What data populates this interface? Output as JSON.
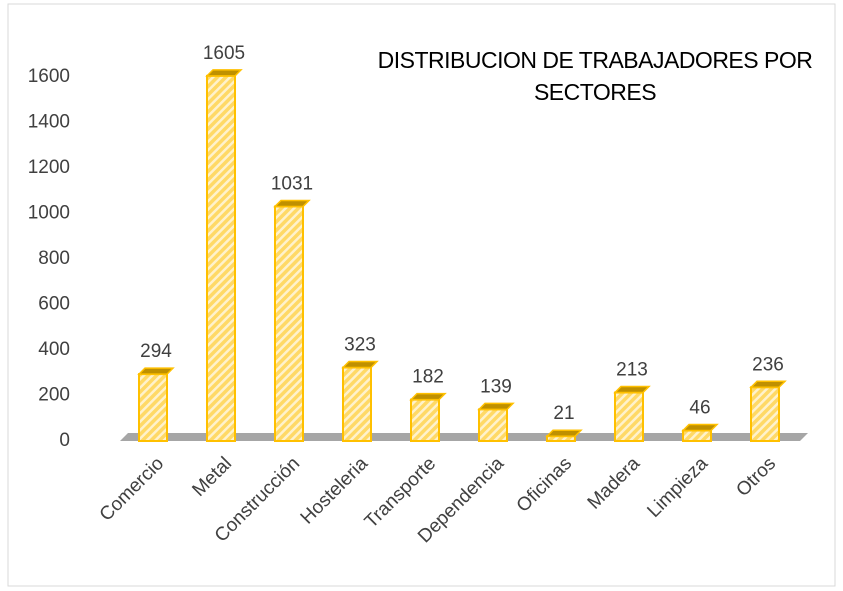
{
  "chart_data": {
    "type": "bar",
    "title": "DISTRIBUCION DE TRABAJADORES POR SECTORES",
    "categories": [
      "Comercio",
      "Metal",
      "Construcción",
      "Hosteleria",
      "Transporte",
      "Dependencia",
      "Oficinas",
      "Madera",
      "Limpieza",
      "Otros"
    ],
    "values": [
      294,
      1605,
      1031,
      323,
      182,
      139,
      21,
      213,
      46,
      236
    ],
    "color": "#ffd966",
    "ylim": [
      0,
      1600
    ],
    "yticks": [
      0,
      200,
      400,
      600,
      800,
      1000,
      1200,
      1400,
      1600
    ],
    "grid": false
  }
}
